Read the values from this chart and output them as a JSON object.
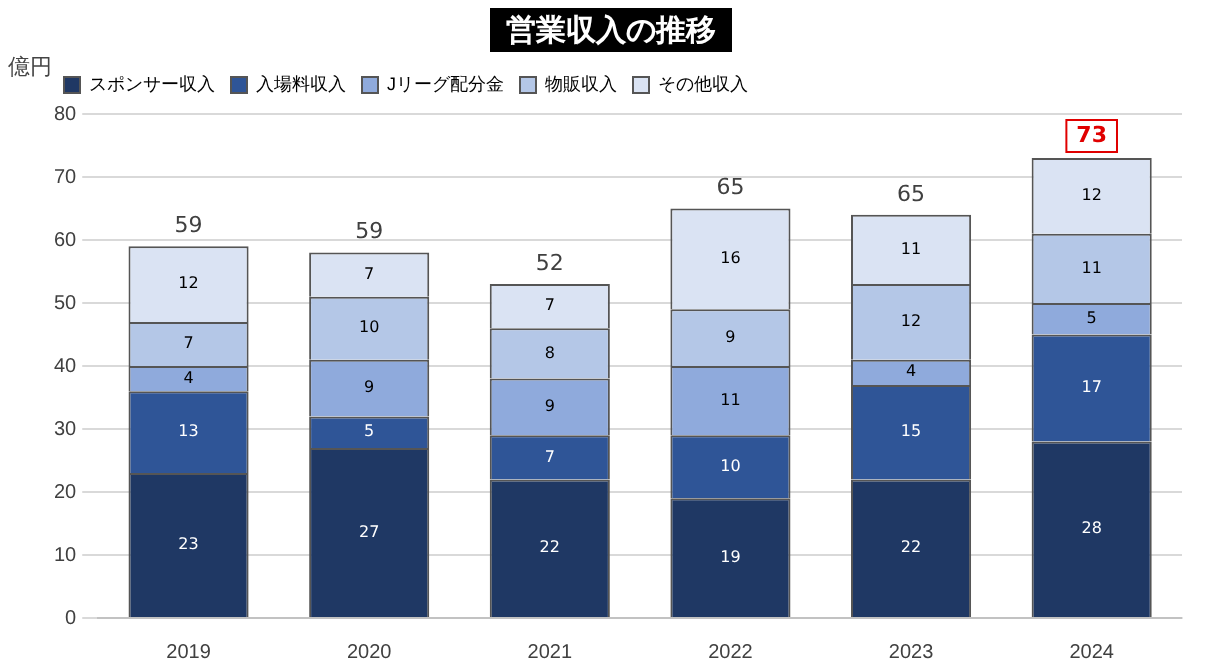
{
  "chart_data": {
    "type": "bar",
    "title": "営業収入の推移",
    "ylabel": "億円",
    "stacked": true,
    "categories": [
      "2019",
      "2020",
      "2021",
      "2022",
      "2023",
      "2024"
    ],
    "series": [
      {
        "name": "スポンサー収入",
        "color": "#1f3864",
        "values": [
          23,
          27,
          22,
          19,
          22,
          28
        ]
      },
      {
        "name": "入場料収入",
        "color": "#2f5597",
        "values": [
          13,
          5,
          7,
          10,
          15,
          17
        ]
      },
      {
        "name": "Jリーグ配分金",
        "color": "#8faadc",
        "values": [
          4,
          9,
          9,
          11,
          4,
          5
        ]
      },
      {
        "name": "物販収入",
        "color": "#b4c7e7",
        "values": [
          7,
          10,
          8,
          9,
          12,
          11
        ]
      },
      {
        "name": "その他収入",
        "color": "#dae3f3",
        "values": [
          12,
          7,
          7,
          16,
          11,
          12
        ]
      }
    ],
    "ylim": [
      0,
      80
    ],
    "yticks": [
      0,
      10,
      20,
      30,
      40,
      50,
      60,
      70,
      80
    ],
    "grid": "y",
    "legend": "top left",
    "data_labels": true,
    "totals": [
      "59",
      "59",
      "52",
      "65",
      "65",
      "73"
    ]
  }
}
